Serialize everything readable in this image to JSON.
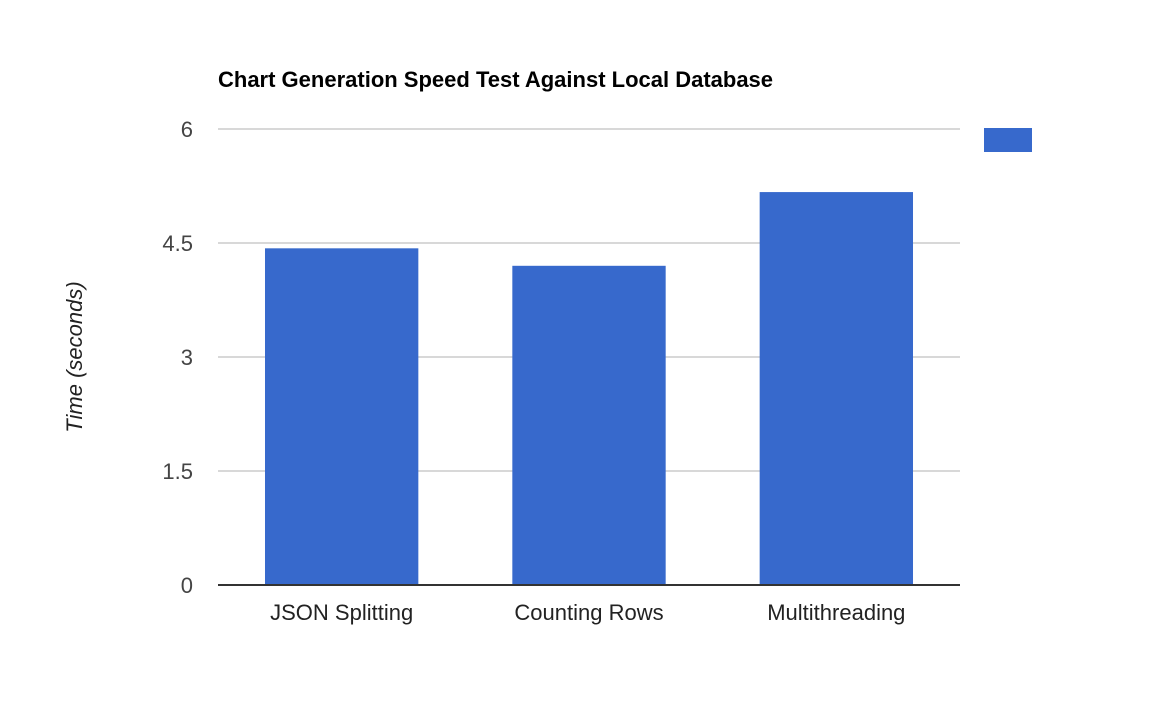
{
  "chart_data": {
    "type": "bar",
    "title": "Chart Generation Speed Test Against Local Database",
    "xlabel": "",
    "ylabel": "Time (seconds)",
    "categories": [
      "JSON Splitting",
      "Counting Rows",
      "Multithreading"
    ],
    "series": [
      {
        "values": [
          4.43,
          4.2,
          5.17
        ],
        "color": "#3769cc"
      }
    ],
    "ylim": [
      0,
      6
    ],
    "yticks": [
      "0",
      "1.5",
      "3",
      "4.5",
      "6"
    ],
    "grid": true,
    "legend_position": "right"
  }
}
